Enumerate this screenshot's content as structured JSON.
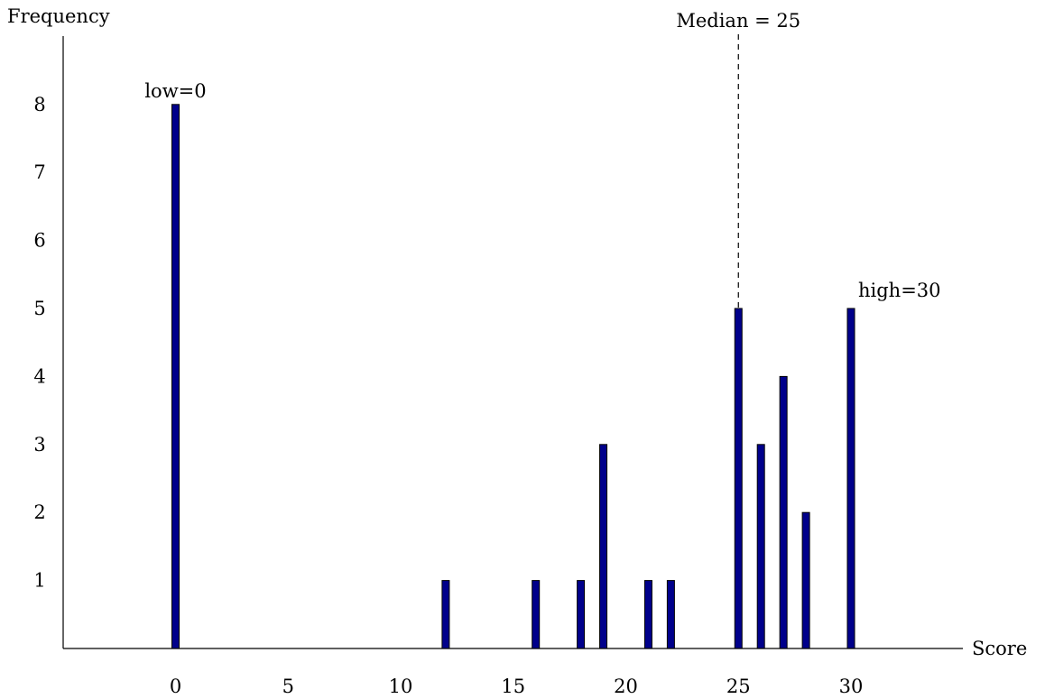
{
  "chart_data": {
    "type": "bar",
    "xlabel": "Score",
    "ylabel": "Frequency",
    "xlim": [
      -5,
      35
    ],
    "ylim": [
      0,
      8
    ],
    "x_ticks": [
      0,
      5,
      10,
      15,
      20,
      25,
      30
    ],
    "y_ticks": [
      1,
      2,
      3,
      4,
      5,
      6,
      7,
      8
    ],
    "bar_color": "#00008b",
    "grid": false,
    "series": [
      {
        "x": [
          0,
          12,
          16,
          18,
          19,
          21,
          22,
          25,
          26,
          27,
          28,
          30
        ],
        "values": [
          8,
          1,
          1,
          1,
          3,
          1,
          1,
          5,
          3,
          4,
          2,
          5
        ]
      }
    ],
    "annotations": {
      "low_label": "low=0",
      "low_x": 0,
      "high_label": "high=30",
      "high_x": 30,
      "median_label": "Median = 25",
      "median_x": 25
    }
  }
}
